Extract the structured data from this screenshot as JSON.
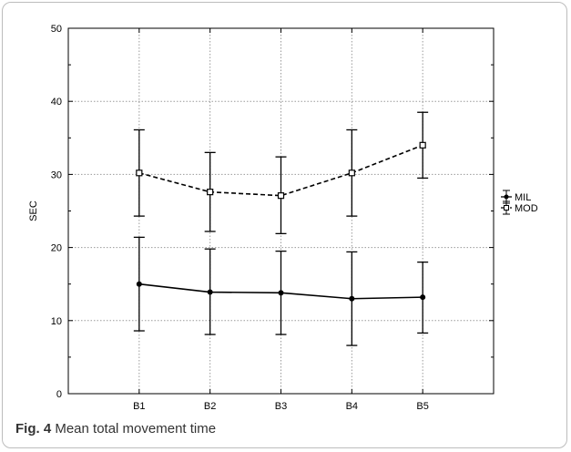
{
  "caption": {
    "label": "Fig. 4",
    "text": "Mean total movement time"
  },
  "chart_data": {
    "type": "line",
    "title": "",
    "xlabel": "",
    "ylabel": "SEC",
    "categories": [
      "B1",
      "B2",
      "B3",
      "B4",
      "B5"
    ],
    "ylim": [
      0,
      50
    ],
    "yticks": [
      0,
      10,
      20,
      30,
      40,
      50
    ],
    "grid": true,
    "legend_position": "right",
    "series": [
      {
        "name": "MIL",
        "values": [
          15.0,
          13.9,
          13.8,
          13.0,
          13.2
        ],
        "lower": [
          8.6,
          8.1,
          8.1,
          6.6,
          8.3
        ],
        "upper": [
          21.4,
          19.8,
          19.5,
          19.4,
          18.0
        ],
        "line_style": "solid",
        "marker": "filled-circle",
        "color": "#000000"
      },
      {
        "name": "MOD",
        "values": [
          30.2,
          27.6,
          27.1,
          30.2,
          34.0
        ],
        "lower": [
          24.3,
          22.2,
          21.9,
          24.3,
          29.5
        ],
        "upper": [
          36.1,
          33.0,
          32.4,
          36.1,
          38.5
        ],
        "line_style": "dashed",
        "marker": "open-square",
        "color": "#000000"
      }
    ]
  }
}
